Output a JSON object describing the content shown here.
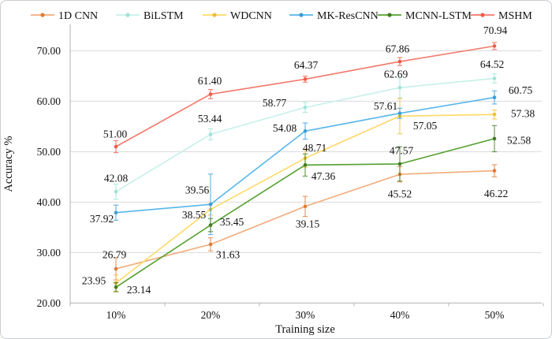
{
  "figure": {
    "background": "#ffffff",
    "border_color": "#c9cdd1"
  },
  "chart_data": {
    "type": "line",
    "title": "",
    "xlabel": "Training size",
    "ylabel": "Accuracy %",
    "categories": [
      "10%",
      "20%",
      "30%",
      "40%",
      "50%"
    ],
    "y_ticks": [
      "20.00",
      "30.00",
      "40.00",
      "50.00",
      "60.00",
      "70.00"
    ],
    "y_tick_values": [
      20,
      30,
      40,
      50,
      60,
      70
    ],
    "ylim": [
      20,
      75
    ],
    "grid": "horizontal",
    "grid_color": "#d9d9d9",
    "axis_color": "#bfbfbf",
    "text_color": "#111111",
    "legend_position": "top",
    "error_bars": true,
    "series": [
      {
        "name": "1D CNN",
        "color": "#F2AC7B",
        "marker_color": "#E07B35",
        "values": [
          26.79,
          31.63,
          39.15,
          45.52,
          46.22
        ],
        "labels": [
          "26.79",
          "31.63",
          "39.15",
          "45.52",
          "46.22"
        ],
        "errors": [
          2.2,
          1.3,
          2.0,
          1.5,
          1.2
        ],
        "label_offsets": [
          [
            -2,
            -18
          ],
          [
            22,
            13
          ],
          [
            3,
            22
          ],
          [
            0,
            25
          ],
          [
            2,
            29
          ]
        ]
      },
      {
        "name": "BiLSTM",
        "color": "#C6F0E9",
        "marker_color": "#9FE3D7",
        "values": [
          42.08,
          53.44,
          58.77,
          62.69,
          64.52
        ],
        "labels": [
          "42.08",
          "53.44",
          "58.77",
          "62.69",
          "64.52"
        ],
        "errors": [
          1.5,
          1.1,
          1.0,
          2.0,
          0.9
        ],
        "label_offsets": [
          [
            0,
            -17
          ],
          [
            -1,
            -20
          ],
          [
            -39,
            -6
          ],
          [
            -5,
            -17
          ],
          [
            -3,
            -18
          ]
        ]
      },
      {
        "name": "WDCNN",
        "color": "#FFD966",
        "marker_color": "#F2BC33",
        "values": [
          23.95,
          38.55,
          48.71,
          57.05,
          57.38
        ],
        "labels": [
          "23.95",
          "38.55",
          "48.71",
          "57.05",
          "57.38"
        ],
        "errors": [
          1.6,
          1.1,
          1.8,
          3.5,
          0.9
        ],
        "label_offsets": [
          [
            -28,
            -3
          ],
          [
            -21,
            7
          ],
          [
            12,
            -13
          ],
          [
            32,
            12
          ],
          [
            36,
            -1
          ]
        ]
      },
      {
        "name": "MK-ResCNN",
        "color": "#57B6EA",
        "marker_color": "#3B9ED8",
        "values": [
          37.92,
          39.56,
          54.08,
          57.61,
          60.75
        ],
        "labels": [
          "37.92",
          "39.56",
          "54.08",
          "57.61",
          "60.75"
        ],
        "errors": [
          1.5,
          6.0,
          1.6,
          1.0,
          1.3
        ],
        "label_offsets": [
          [
            -18,
            8
          ],
          [
            -17,
            -18
          ],
          [
            -26,
            -4
          ],
          [
            -18,
            -9
          ],
          [
            33,
            -9
          ]
        ]
      },
      {
        "name": "MCNN-LSTM",
        "color": "#55A02E",
        "marker_color": "#3F7D1F",
        "values": [
          23.14,
          35.45,
          47.36,
          47.57,
          52.58
        ],
        "labels": [
          "23.14",
          "35.45",
          "47.36",
          "47.57",
          "52.58"
        ],
        "errors": [
          0.9,
          1.3,
          2.2,
          3.4,
          2.6
        ],
        "label_offsets": [
          [
            29,
            3
          ],
          [
            27,
            -4
          ],
          [
            23,
            14
          ],
          [
            2,
            -17
          ],
          [
            31,
            2
          ]
        ]
      },
      {
        "name": "MSHM",
        "color": "#F4796B",
        "marker_color": "#EE5B49",
        "values": [
          51.0,
          61.4,
          64.37,
          67.86,
          70.94
        ],
        "labels": [
          "51.00",
          "61.40",
          "64.37",
          "67.86",
          "70.94"
        ],
        "errors": [
          1.2,
          0.9,
          0.6,
          0.8,
          0.7
        ],
        "label_offsets": [
          [
            -1,
            -16
          ],
          [
            -1,
            -17
          ],
          [
            1,
            -18
          ],
          [
            -3,
            -16
          ],
          [
            1,
            -20
          ]
        ]
      }
    ]
  }
}
